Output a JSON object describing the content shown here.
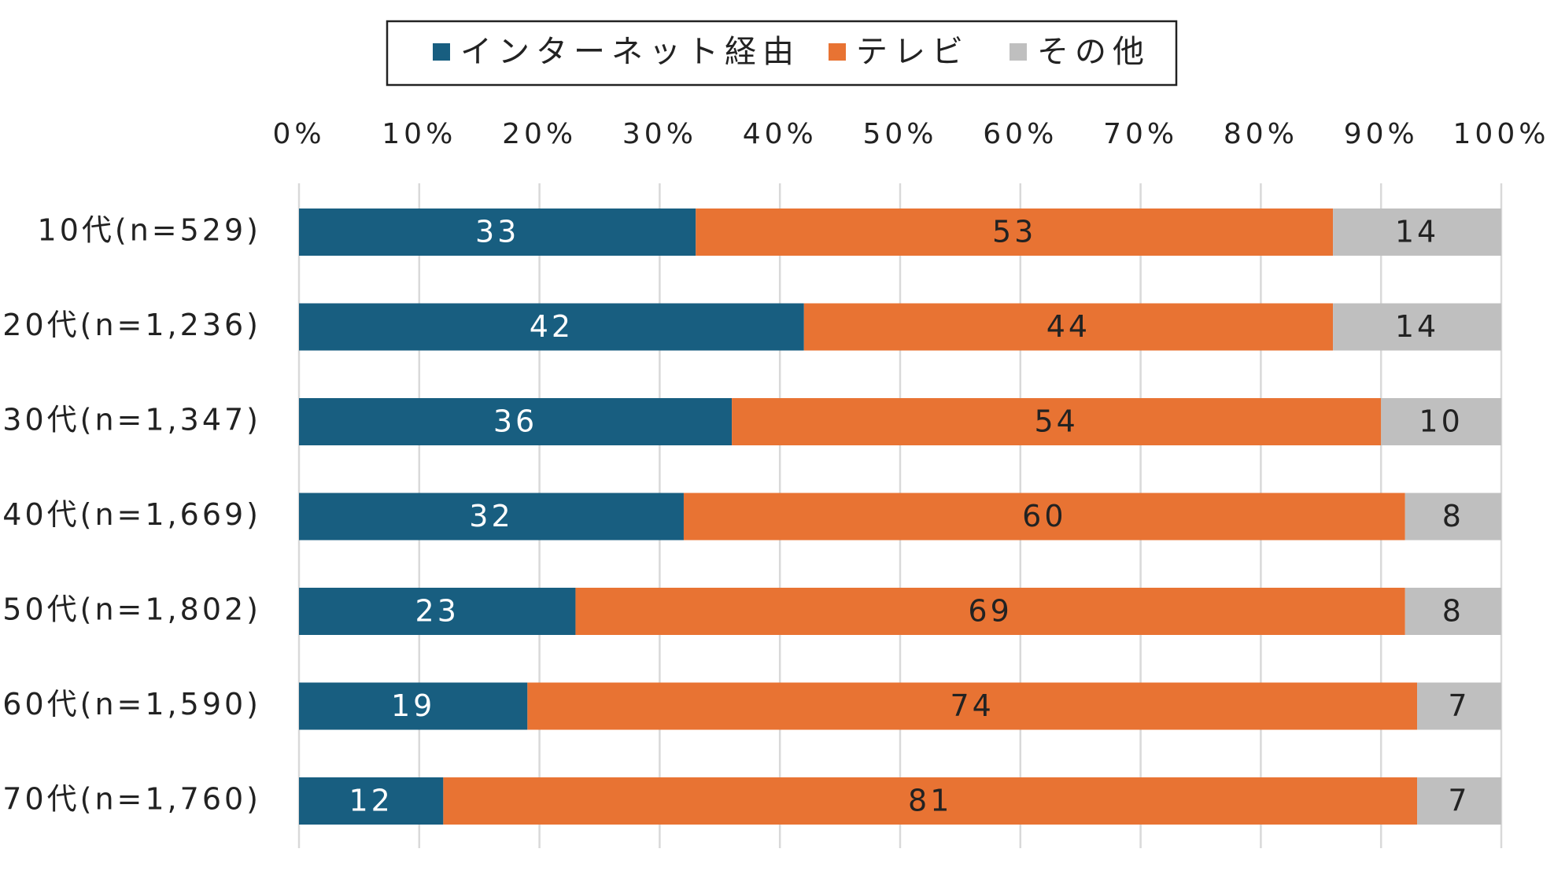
{
  "chart_data": {
    "type": "bar",
    "orientation": "horizontal",
    "stacked": "percent",
    "categories": [
      "10代(n=529)",
      "20代(n=1,236)",
      "30代(n=1,347)",
      "40代(n=1,669)",
      "50代(n=1,802)",
      "60代(n=1,590)",
      "70代(n=1,760)"
    ],
    "series": [
      {
        "name": "インターネット経由",
        "color": "#185e80",
        "label_color": "#ffffff",
        "values": [
          33,
          42,
          36,
          32,
          23,
          19,
          12
        ]
      },
      {
        "name": "テレビ",
        "color": "#e87333",
        "label_color": "#222222",
        "values": [
          53,
          44,
          54,
          60,
          69,
          74,
          81
        ]
      },
      {
        "name": "その他",
        "color": "#bfbfbf",
        "label_color": "#222222",
        "values": [
          14,
          14,
          10,
          8,
          8,
          7,
          7
        ]
      }
    ],
    "xlim": [
      0,
      100
    ],
    "ticks": [
      "0%",
      "10%",
      "20%",
      "30%",
      "40%",
      "50%",
      "60%",
      "70%",
      "80%",
      "90%",
      "100%"
    ],
    "legend_position": "top",
    "grid": true
  }
}
